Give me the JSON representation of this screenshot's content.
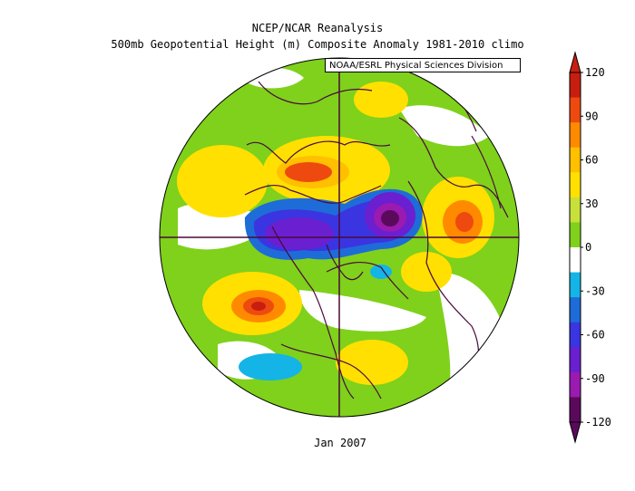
{
  "header": {
    "line1": "NCEP/NCAR Reanalysis",
    "line2": "500mb Geopotential Height (m) Composite Anomaly 1981-2010 climo",
    "credit": "NOAA/ESRL Physical Sciences Division"
  },
  "footer": {
    "caption": "Jan 2007"
  },
  "chart_data": {
    "type": "heatmap",
    "title": "500mb Geopotential Height (m) Composite Anomaly 1981-2010 climo",
    "subtitle": "NCEP/NCAR Reanalysis",
    "period": "Jan 2007",
    "projection": "north polar stereographic",
    "units": "m",
    "colorbar": {
      "ticks": [
        120,
        90,
        60,
        30,
        0,
        -30,
        -60,
        -90,
        -120
      ],
      "range": [
        -120,
        120
      ],
      "colors": [
        "#5b0a5b",
        "#9b1ab0",
        "#6a1fd0",
        "#3a35e0",
        "#1e6cd8",
        "#14b4e6",
        "#ffffff",
        "#7fd11b",
        "#c8e03a",
        "#ffe000",
        "#ffc000",
        "#ff8a00",
        "#ee4a10",
        "#c81e10"
      ]
    },
    "features": [
      {
        "name": "negative anomaly over Canadian Arctic",
        "sign": "negative",
        "peak": -90
      },
      {
        "name": "negative anomaly over northern Siberia",
        "sign": "negative",
        "peak": -120
      },
      {
        "name": "positive anomaly over Alaska/North Pacific",
        "sign": "positive",
        "peak": 120
      },
      {
        "name": "positive anomaly over central North Atlantic",
        "sign": "positive",
        "peak": 120
      },
      {
        "name": "positive anomaly over central Asia",
        "sign": "positive",
        "peak": 90
      },
      {
        "name": "positive anomaly over North Pacific",
        "sign": "positive",
        "peak": 60
      },
      {
        "name": "positive anomaly over Mediterranean/Africa",
        "sign": "positive",
        "peak": 60
      },
      {
        "name": "negative anomaly over subtropical Atlantic",
        "sign": "negative",
        "peak": -30
      }
    ]
  }
}
